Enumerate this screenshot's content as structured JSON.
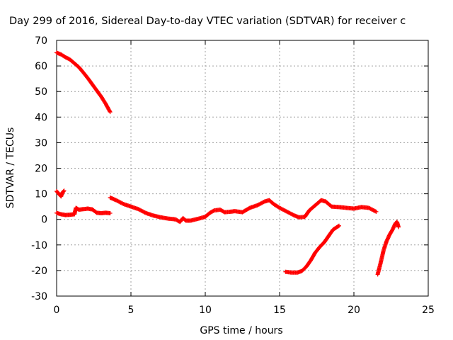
{
  "chart_data": {
    "type": "scatter",
    "title": "Day 299 of 2016, Sidereal Day-to-day VTEC variation (SDTVAR) for receiver c",
    "xlabel": "GPS time / hours",
    "ylabel": "SDTVAR / TECUs",
    "xlim": [
      0,
      25
    ],
    "ylim": [
      -30,
      70
    ],
    "x_ticks": [
      "0",
      "5",
      "10",
      "15",
      "20",
      "25"
    ],
    "y_ticks": [
      "-30",
      "-20",
      "-10",
      "0",
      "10",
      "20",
      "30",
      "40",
      "50",
      "60",
      "70"
    ],
    "grid": true,
    "marker": "plus",
    "color": "#ff0000",
    "series": [
      {
        "points": [
          [
            0.0,
            65.2
          ],
          [
            0.3,
            64.5
          ],
          [
            0.6,
            63.4
          ],
          [
            0.9,
            62.5
          ],
          [
            1.2,
            61.0
          ],
          [
            1.5,
            59.5
          ],
          [
            1.8,
            57.4
          ],
          [
            2.1,
            55.2
          ],
          [
            2.4,
            52.8
          ],
          [
            2.7,
            50.4
          ],
          [
            3.0,
            48.0
          ],
          [
            3.3,
            45.2
          ],
          [
            3.6,
            42.0
          ]
        ]
      },
      {
        "points": [
          [
            0.0,
            11.0
          ],
          [
            0.15,
            10.0
          ],
          [
            0.3,
            9.0
          ],
          [
            0.4,
            10.5
          ],
          [
            0.5,
            11.2
          ]
        ]
      },
      {
        "points": [
          [
            0.0,
            2.5
          ],
          [
            0.3,
            2.0
          ],
          [
            0.6,
            1.7
          ],
          [
            0.9,
            1.8
          ],
          [
            1.2,
            2.0
          ],
          [
            1.3,
            4.5
          ],
          [
            1.5,
            3.8
          ],
          [
            1.8,
            4.0
          ],
          [
            2.1,
            4.2
          ],
          [
            2.4,
            3.9
          ],
          [
            2.7,
            2.6
          ],
          [
            3.0,
            2.4
          ],
          [
            3.3,
            2.6
          ],
          [
            3.6,
            2.4
          ]
        ]
      },
      {
        "points": [
          [
            3.6,
            8.5
          ],
          [
            4.0,
            7.5
          ],
          [
            4.5,
            6.0
          ],
          [
            5.0,
            5.0
          ],
          [
            5.5,
            4.0
          ],
          [
            6.0,
            2.5
          ],
          [
            6.5,
            1.5
          ],
          [
            7.0,
            0.8
          ],
          [
            7.5,
            0.3
          ],
          [
            8.0,
            0.0
          ],
          [
            8.3,
            -1.0
          ],
          [
            8.5,
            0.5
          ],
          [
            8.7,
            -0.5
          ],
          [
            9.0,
            -0.5
          ],
          [
            9.5,
            0.2
          ],
          [
            10.0,
            1.0
          ],
          [
            10.3,
            2.5
          ],
          [
            10.6,
            3.5
          ],
          [
            11.0,
            3.8
          ],
          [
            11.3,
            2.8
          ],
          [
            11.7,
            3.0
          ],
          [
            12.0,
            3.2
          ],
          [
            12.5,
            2.8
          ],
          [
            13.0,
            4.5
          ],
          [
            13.5,
            5.5
          ],
          [
            14.0,
            7.0
          ],
          [
            14.3,
            7.5
          ],
          [
            14.6,
            6.0
          ],
          [
            15.0,
            4.5
          ],
          [
            15.5,
            3.0
          ],
          [
            16.0,
            1.5
          ],
          [
            16.3,
            0.8
          ],
          [
            16.7,
            1.0
          ],
          [
            17.0,
            3.5
          ],
          [
            17.5,
            6.0
          ],
          [
            17.8,
            7.5
          ],
          [
            18.1,
            7.0
          ],
          [
            18.5,
            5.0
          ],
          [
            19.0,
            4.8
          ],
          [
            19.5,
            4.5
          ],
          [
            20.0,
            4.2
          ],
          [
            20.5,
            4.8
          ],
          [
            21.0,
            4.5
          ],
          [
            21.5,
            3.0
          ]
        ]
      },
      {
        "points": [
          [
            15.4,
            -20.5
          ],
          [
            15.8,
            -20.8
          ],
          [
            16.2,
            -20.8
          ],
          [
            16.5,
            -20.2
          ],
          [
            16.8,
            -18.5
          ],
          [
            17.1,
            -16.0
          ],
          [
            17.4,
            -13.0
          ],
          [
            17.7,
            -10.8
          ],
          [
            18.0,
            -9.0
          ],
          [
            18.3,
            -6.5
          ],
          [
            18.6,
            -4.0
          ],
          [
            19.0,
            -2.5
          ]
        ]
      },
      {
        "points": [
          [
            21.6,
            -21.5
          ],
          [
            21.8,
            -17.0
          ],
          [
            22.0,
            -12.0
          ],
          [
            22.2,
            -8.5
          ],
          [
            22.4,
            -6.0
          ],
          [
            22.6,
            -4.0
          ],
          [
            22.8,
            -1.5
          ],
          [
            22.9,
            -1.0
          ],
          [
            23.0,
            -3.0
          ]
        ]
      }
    ]
  }
}
